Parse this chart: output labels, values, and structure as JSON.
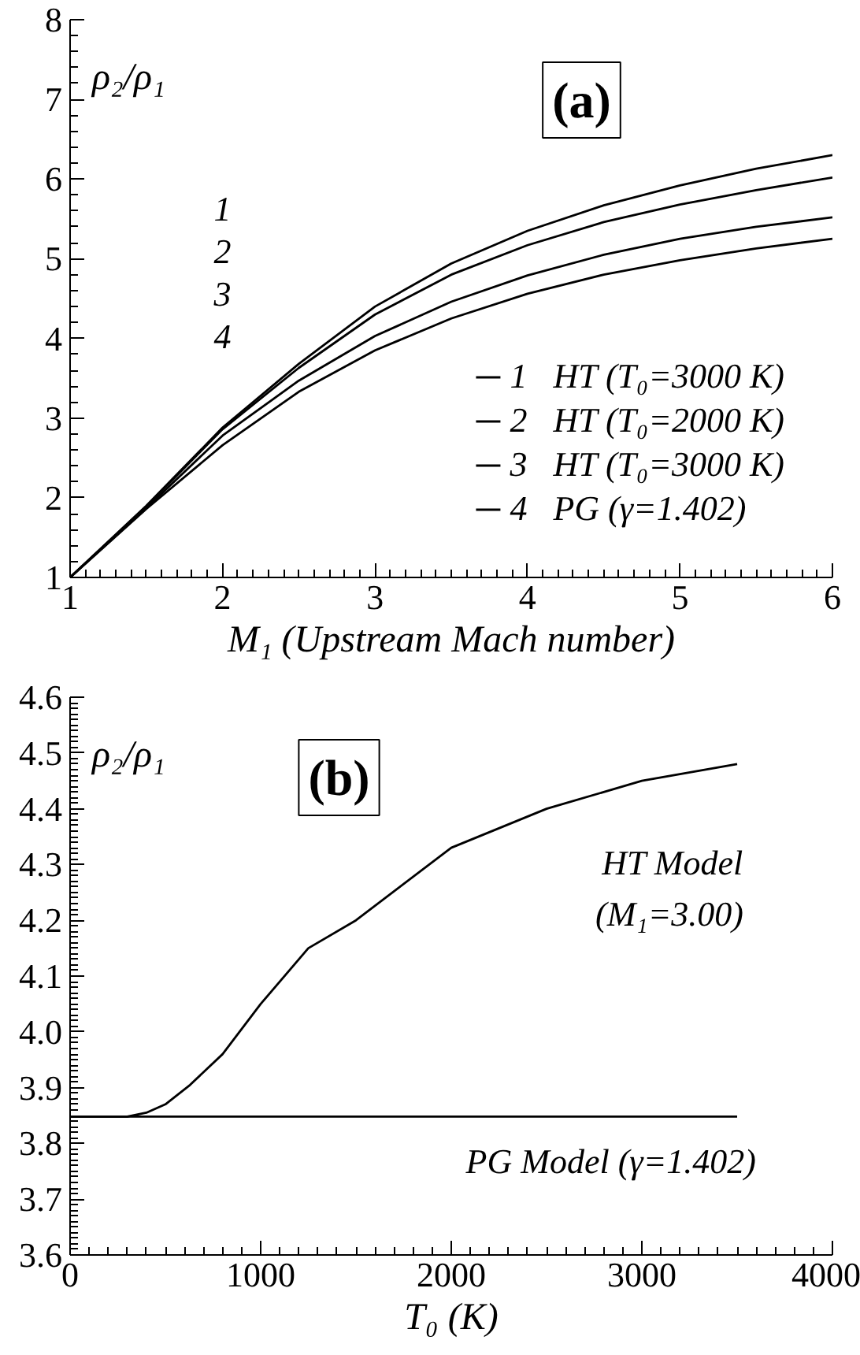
{
  "chart_data": [
    {
      "type": "line",
      "title": "(a)",
      "xlabel": "M₁ (Upstream Mach number)",
      "ylabel": "ρ₂/ρ₁",
      "xlim": [
        1,
        6
      ],
      "ylim": [
        1,
        8
      ],
      "xticks": [
        1,
        2,
        3,
        4,
        5,
        6
      ],
      "yticks": [
        1,
        2,
        3,
        4,
        5,
        6,
        7,
        8
      ],
      "grid": false,
      "legend": "bottom right",
      "line_style": "solid",
      "marker": "none",
      "x": [
        1,
        1.5,
        2,
        2.5,
        3,
        3.5,
        4,
        4.5,
        5,
        5.5,
        6
      ],
      "annotations": [
        "1",
        "2",
        "3",
        "4"
      ],
      "series": [
        {
          "name": "1   HT (T₀=3000 K)",
          "color": "#000000",
          "values": [
            1,
            1.9,
            2.88,
            3.68,
            4.4,
            4.94,
            5.35,
            5.67,
            5.92,
            6.13,
            6.3
          ]
        },
        {
          "name": "2   HT (T₀=2000 K)",
          "color": "#000000",
          "values": [
            1,
            1.89,
            2.86,
            3.63,
            4.3,
            4.8,
            5.17,
            5.46,
            5.68,
            5.86,
            6.02
          ]
        },
        {
          "name": "3   HT (T₀=3000 K)",
          "color": "#000000",
          "values": [
            1,
            1.87,
            2.78,
            3.47,
            4.03,
            4.46,
            4.79,
            5.05,
            5.25,
            5.4,
            5.52
          ]
        },
        {
          "name": "4   PG (γ=1.402)",
          "color": "#000000",
          "values": [
            1,
            1.86,
            2.66,
            3.33,
            3.85,
            4.25,
            4.56,
            4.8,
            4.98,
            5.13,
            5.25
          ]
        }
      ]
    },
    {
      "type": "line",
      "title": "(b)",
      "xlabel": "T₀ (K)",
      "ylabel": "ρ₂/ρ₁",
      "xlim": [
        0,
        4000
      ],
      "ylim": [
        3.6,
        4.6
      ],
      "xticks": [
        0,
        1000,
        2000,
        3000,
        4000
      ],
      "yticks": [
        {
          "value": 3.6,
          "label": "3.6"
        },
        {
          "value": 3.7,
          "label": "3.7"
        },
        {
          "value": 3.8,
          "label": "3.8"
        },
        {
          "value": 3.9,
          "label": "3.9"
        },
        {
          "value": 4.0,
          "label": "4.0"
        },
        {
          "value": 4.1,
          "label": "4.1"
        },
        {
          "value": 4.2,
          "label": "4.2"
        },
        {
          "value": 4.3,
          "label": "4.3"
        },
        {
          "value": 4.4,
          "label": "4.4"
        },
        {
          "value": 4.5,
          "label": "4.5"
        },
        {
          "value": 4.6,
          "label": "4.6"
        }
      ],
      "grid": false,
      "line_style": "solid",
      "marker": "none",
      "series": [
        {
          "name": "HT Model\n(M₁=3.00)",
          "color": "#000000",
          "x": [
            0,
            300,
            400,
            500,
            630,
            800,
            1000,
            1250,
            1500,
            2000,
            2500,
            3000,
            3500
          ],
          "values": [
            3.848,
            3.848,
            3.855,
            3.87,
            3.905,
            3.96,
            4.05,
            4.15,
            4.2,
            4.33,
            4.4,
            4.45,
            4.48
          ]
        },
        {
          "name": "PG Model (γ=1.402)",
          "color": "#000000",
          "x": [
            0,
            3500
          ],
          "values": [
            3.848,
            3.848
          ]
        }
      ]
    }
  ]
}
